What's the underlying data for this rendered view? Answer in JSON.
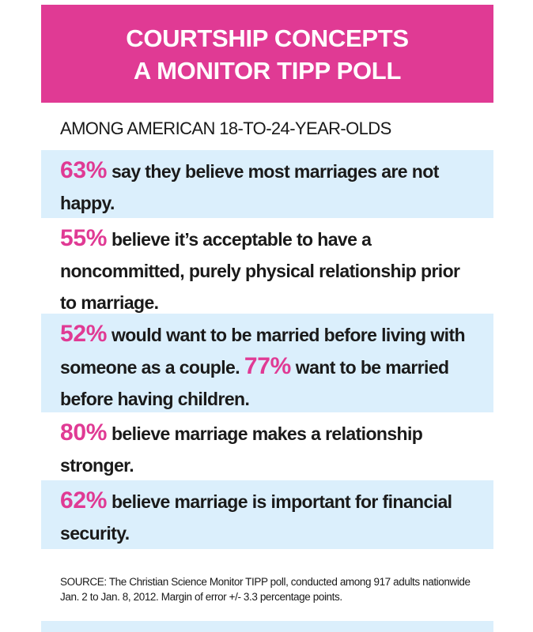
{
  "header": {
    "title_line1": "COURTSHIP CONCEPTS",
    "title_line2": "A MONITOR TIPP POLL"
  },
  "subtitle": "AMONG AMERICAN 18-TO-24-YEAR-OLDS",
  "findings": [
    {
      "percent": "63%",
      "text": " say they believe most marriages are not happy."
    },
    {
      "percent": "55%",
      "text": " believe it’s acceptable to have a noncommitted, purely physical relationship prior to marriage."
    },
    {
      "percent": "52%",
      "text": " would want to be married before living with someone as a couple. ",
      "percent2": "77%",
      "text2": " want to be married before having children."
    },
    {
      "percent": "80%",
      "text": " believe marriage makes a relationship stronger."
    },
    {
      "percent": "62%",
      "text": " believe marriage is important for financial security."
    }
  ],
  "source": "SOURCE: The Christian Science Monitor TIPP poll, conducted among 917 adults nationwide Jan. 2 to Jan. 8, 2012. Margin of error +/- 3.3 percentage points.",
  "colors": {
    "accent": "#e03a94",
    "row_bg": "#dbeffc"
  }
}
